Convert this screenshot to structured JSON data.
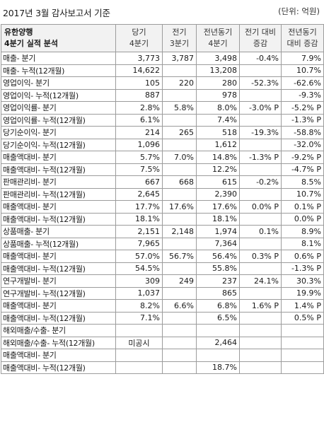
{
  "caption": {
    "title": "2017년 3월 감사보고서 기준",
    "unit": "(단위: 억원)"
  },
  "header": {
    "company": "유한양행",
    "subtitle": "4분기 실적 분석",
    "col1a": "당기",
    "col1b": "4분기",
    "col2a": "전기",
    "col2b": "3분기",
    "col3a": "전년동기",
    "col3b": "4분기",
    "col4a": "전기 대비",
    "col4b": "증감",
    "col5a": "전년동기",
    "col5b": "대비 증감"
  },
  "rows": [
    {
      "label": "매출- 분기",
      "cur": "3,773",
      "prev": "3,787",
      "yoy": "3,498",
      "qoq_chg": "-0.4%",
      "yoy_chg": "7.9%"
    },
    {
      "label": "매출- 누적(12개월)",
      "cur": "14,622",
      "prev": "",
      "yoy": "13,208",
      "qoq_chg": "",
      "yoy_chg": "10.7%"
    },
    {
      "label": "영업이익- 분기",
      "cur": "105",
      "prev": "220",
      "yoy": "280",
      "qoq_chg": "-52.3%",
      "yoy_chg": "-62.6%"
    },
    {
      "label": "영업이익- 누적(12개월)",
      "cur": "887",
      "prev": "",
      "yoy": "978",
      "qoq_chg": "",
      "yoy_chg": "-9.3%"
    },
    {
      "label": "영업이익률- 분기",
      "cur": "2.8%",
      "prev": "5.8%",
      "yoy": "8.0%",
      "qoq_chg": "-3.0% P",
      "yoy_chg": "-5.2% P"
    },
    {
      "label": "영업이익률- 누적(12개월)",
      "cur": "6.1%",
      "prev": "",
      "yoy": "7.4%",
      "qoq_chg": "",
      "yoy_chg": "-1.3% P"
    },
    {
      "label": "당기순이익- 분기",
      "cur": "214",
      "prev": "265",
      "yoy": "518",
      "qoq_chg": "-19.3%",
      "yoy_chg": "-58.8%"
    },
    {
      "label": "당기순이익- 누적(12개월)",
      "cur": "1,096",
      "prev": "",
      "yoy": "1,612",
      "qoq_chg": "",
      "yoy_chg": "-32.0%"
    },
    {
      "label": "매출액대비- 분기",
      "cur": "5.7%",
      "prev": "7.0%",
      "yoy": "14.8%",
      "qoq_chg": "-1.3% P",
      "yoy_chg": "-9.2% P"
    },
    {
      "label": "매출액대비- 누적(12개월)",
      "cur": "7.5%",
      "prev": "",
      "yoy": "12.2%",
      "qoq_chg": "",
      "yoy_chg": "-4.7% P"
    },
    {
      "label": "판매관리비- 분기",
      "cur": "667",
      "prev": "668",
      "yoy": "615",
      "qoq_chg": "-0.2%",
      "yoy_chg": "8.5%"
    },
    {
      "label": "판매관리비- 누적(12개월)",
      "cur": "2,645",
      "prev": "",
      "yoy": "2,390",
      "qoq_chg": "",
      "yoy_chg": "10.7%"
    },
    {
      "label": "매출액대비- 분기",
      "cur": "17.7%",
      "prev": "17.6%",
      "yoy": "17.6%",
      "qoq_chg": "0.0% P",
      "yoy_chg": "0.1% P"
    },
    {
      "label": "매출액대비- 누적(12개월)",
      "cur": "18.1%",
      "prev": "",
      "yoy": "18.1%",
      "qoq_chg": "",
      "yoy_chg": "0.0% P"
    },
    {
      "label": "상품매출- 분기",
      "cur": "2,151",
      "prev": "2,148",
      "yoy": "1,974",
      "qoq_chg": "0.1%",
      "yoy_chg": "8.9%"
    },
    {
      "label": "상품매출- 누적(12개월)",
      "cur": "7,965",
      "prev": "",
      "yoy": "7,364",
      "qoq_chg": "",
      "yoy_chg": "8.1%"
    },
    {
      "label": "매출액대비- 분기",
      "cur": "57.0%",
      "prev": "56.7%",
      "yoy": "56.4%",
      "qoq_chg": "0.3% P",
      "yoy_chg": "0.6% P"
    },
    {
      "label": "매출액대비- 누적(12개월)",
      "cur": "54.5%",
      "prev": "",
      "yoy": "55.8%",
      "qoq_chg": "",
      "yoy_chg": "-1.3% P"
    },
    {
      "label": "연구개발비- 분기",
      "cur": "309",
      "prev": "249",
      "yoy": "237",
      "qoq_chg": "24.1%",
      "yoy_chg": "30.3%"
    },
    {
      "label": "연구개발비- 누적(12개월)",
      "cur": "1,037",
      "prev": "",
      "yoy": "865",
      "qoq_chg": "",
      "yoy_chg": "19.9%"
    },
    {
      "label": "매출액대비- 분기",
      "cur": "8.2%",
      "prev": "6.6%",
      "yoy": "6.8%",
      "qoq_chg": "1.6% P",
      "yoy_chg": "1.4% P"
    },
    {
      "label": "매출액대비- 누적(12개월)",
      "cur": "7.1%",
      "prev": "",
      "yoy": "6.5%",
      "qoq_chg": "",
      "yoy_chg": "0.5% P"
    },
    {
      "label": "해외매출/수출- 분기",
      "cur": "",
      "prev": "",
      "yoy": "",
      "qoq_chg": "",
      "yoy_chg": ""
    },
    {
      "label": "해외매출/수출- 누적(12개월)",
      "cur": "미공시",
      "prev": "",
      "yoy": "2,464",
      "qoq_chg": "",
      "yoy_chg": ""
    },
    {
      "label": "매출액대비- 분기",
      "cur": "",
      "prev": "",
      "yoy": "",
      "qoq_chg": "",
      "yoy_chg": ""
    },
    {
      "label": "매출액대비- 누적(12개월)",
      "cur": "",
      "prev": "",
      "yoy": "18.7%",
      "qoq_chg": "",
      "yoy_chg": ""
    }
  ]
}
